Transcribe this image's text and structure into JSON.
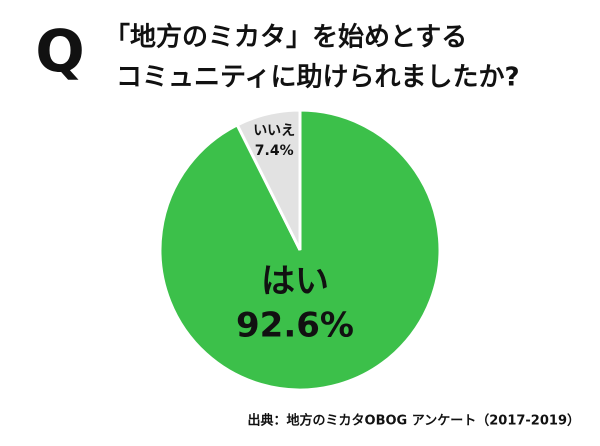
{
  "chart_data": {
    "type": "pie",
    "title_mark": "Q",
    "title": [
      "「地方のミカタ」を始めとする",
      "コミュニティに助けられましたか?"
    ],
    "categories": [
      "はい",
      "いいえ"
    ],
    "values": [
      92.6,
      7.4
    ],
    "value_labels": [
      "92.6%",
      "7.4%"
    ],
    "colors": [
      "#3cc04a",
      "#e2e2e2"
    ],
    "source": "出典：地方のミカタOBOG アンケート（2017-2019）"
  }
}
